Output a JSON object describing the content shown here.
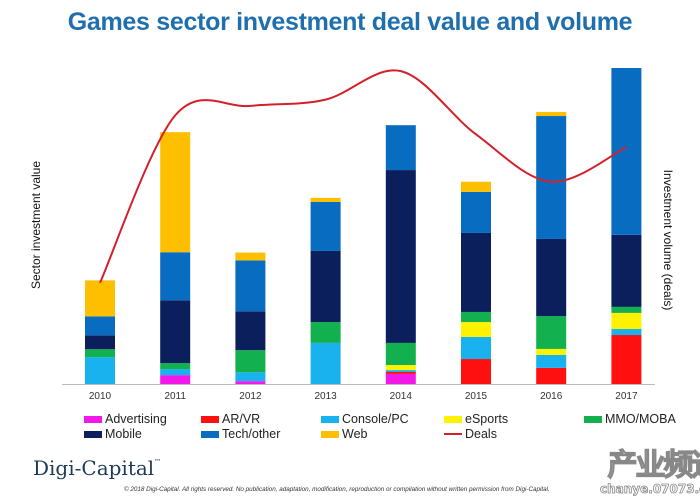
{
  "chart_data": {
    "type": "bar",
    "stacked": true,
    "title": "Games sector investment deal value and volume",
    "xlabel": "",
    "ylabel": "Sector investment value",
    "y2label": "Investment volume (deals)",
    "value_units": "relative (unlabeled axis, approx. % of 2017 total)",
    "categories": [
      "2010",
      "2011",
      "2012",
      "2013",
      "2014",
      "2015",
      "2016",
      "2017"
    ],
    "ylim": [
      0,
      100
    ],
    "grid": false,
    "legend_position": "bottom",
    "series": [
      {
        "name": "Advertising",
        "color": "#f218e8",
        "values": [
          0,
          2.8,
          0.9,
          0,
          3.2,
          0,
          0,
          0
        ]
      },
      {
        "name": "AR/VR",
        "color": "#ff1010",
        "values": [
          0,
          0,
          0,
          0,
          0.6,
          7.9,
          5.1,
          15.5
        ]
      },
      {
        "name": "Console/PC",
        "color": "#19b2ee",
        "values": [
          8.5,
          1.9,
          2.8,
          13.0,
          0.6,
          7.0,
          4.1,
          1.9
        ]
      },
      {
        "name": "eSports",
        "color": "#fff200",
        "values": [
          0,
          0,
          0,
          0,
          1.6,
          4.7,
          1.9,
          5.1
        ]
      },
      {
        "name": "MMO/MOBA",
        "color": "#12b04e",
        "values": [
          2.5,
          1.9,
          7.0,
          6.6,
          7.0,
          3.2,
          10.4,
          1.9
        ]
      },
      {
        "name": "Mobile",
        "color": "#0b1f5c",
        "values": [
          4.4,
          19.9,
          12.3,
          22.5,
          54.7,
          25.0,
          24.4,
          22.8
        ]
      },
      {
        "name": "Tech/other",
        "color": "#086cc0",
        "values": [
          6.0,
          15.2,
          16.1,
          15.5,
          14.2,
          13.0,
          38.9,
          52.8
        ]
      },
      {
        "name": "Web",
        "color": "#fdbf00",
        "values": [
          11.4,
          38.0,
          2.5,
          1.3,
          0,
          3.2,
          1.3,
          0
        ]
      }
    ],
    "line_series": {
      "name": "Deals",
      "color": "#d4202a",
      "values": [
        32,
        85,
        88,
        90,
        99,
        79,
        64,
        75
      ]
    }
  },
  "legend": {
    "items": [
      {
        "label": "Advertising",
        "color": "#f218e8",
        "kind": "box"
      },
      {
        "label": "AR/VR",
        "color": "#ff1010",
        "kind": "box"
      },
      {
        "label": "Console/PC",
        "color": "#19b2ee",
        "kind": "box"
      },
      {
        "label": "eSports",
        "color": "#fff200",
        "kind": "box"
      },
      {
        "label": "MMO/MOBA",
        "color": "#12b04e",
        "kind": "box"
      },
      {
        "label": "Mobile",
        "color": "#0b1f5c",
        "kind": "box"
      },
      {
        "label": "Tech/other",
        "color": "#086cc0",
        "kind": "box"
      },
      {
        "label": "Web",
        "color": "#fdbf00",
        "kind": "box"
      },
      {
        "label": "Deals",
        "color": "#d4202a",
        "kind": "line"
      }
    ]
  },
  "branding": {
    "logo": "Digi-Capital",
    "logo_tm": "™",
    "copyright": "© 2018 Digi-Capital. All rights reserved. No publication, adaptation, modification, reproduction or compilation without written permission from Digi-Capital.",
    "watermark_main": "产业频道",
    "watermark_url": "chanye.07073.com"
  },
  "colors": {
    "title": "#1f6fae",
    "axis": "#bbbbbb"
  }
}
